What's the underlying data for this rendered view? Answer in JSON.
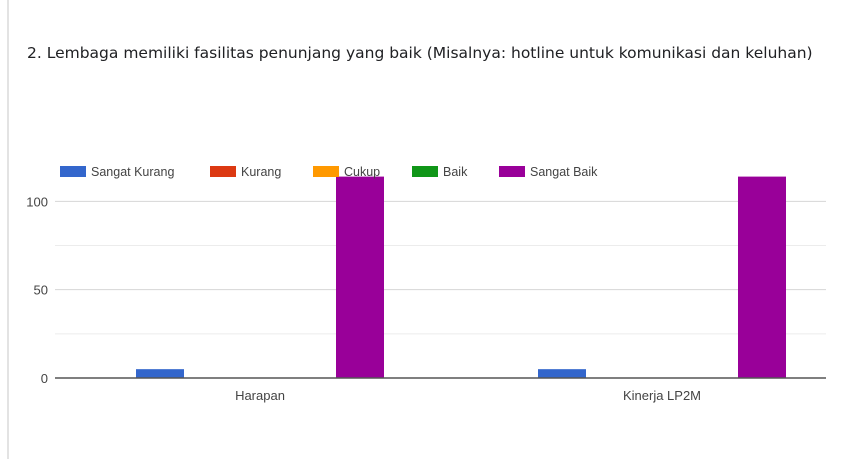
{
  "question": {
    "text": "2. Lembaga memiliki fasilitas penunjang yang baik (Misalnya: hotline untuk komunikasi dan keluhan)"
  },
  "chart_data": {
    "type": "bar",
    "title": "",
    "xlabel": "",
    "ylabel": "",
    "categories": [
      "Harapan",
      "Kinerja LP2M"
    ],
    "series": [
      {
        "name": "Sangat Kurang",
        "color": "#3366cc",
        "values": [
          5,
          5
        ]
      },
      {
        "name": "Kurang",
        "color": "#dc3912",
        "values": [
          0,
          0
        ]
      },
      {
        "name": "Cukup",
        "color": "#ff9900",
        "values": [
          0,
          0
        ]
      },
      {
        "name": "Baik",
        "color": "#109618",
        "values": [
          0,
          0
        ]
      },
      {
        "name": "Sangat Baik",
        "color": "#990099",
        "values": [
          114,
          114
        ]
      }
    ],
    "ylim": [
      0,
      120
    ],
    "yticks": [
      0,
      50,
      100
    ],
    "grid": true,
    "legend_position": "top-left"
  }
}
